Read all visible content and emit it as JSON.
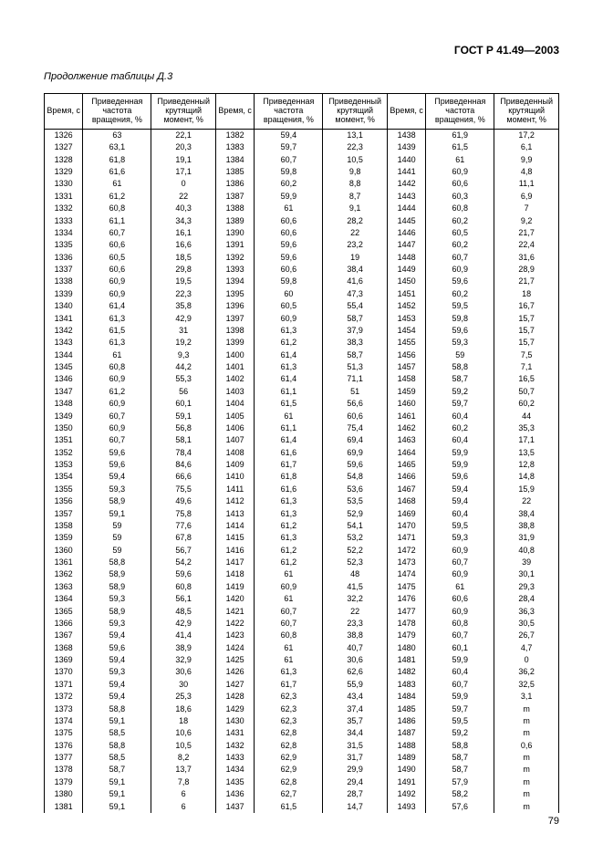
{
  "header": "ГОСТ Р 41.49—2003",
  "caption_prefix": "Продолжение таблицы",
  "caption_suffix": "Д.3",
  "page_number": "79",
  "col_headers": {
    "time": "Время, с",
    "freq": "Приведенная частота вращения, %",
    "torque": "Приведенный крутящий момент, %"
  },
  "blocks": [
    [
      [
        "1326",
        "63",
        "22,1"
      ],
      [
        "1327",
        "63,1",
        "20,3"
      ],
      [
        "1328",
        "61,8",
        "19,1"
      ],
      [
        "1329",
        "61,6",
        "17,1"
      ],
      [
        "1330",
        "61",
        "0"
      ],
      [
        "1331",
        "61,2",
        "22"
      ],
      [
        "1332",
        "60,8",
        "40,3"
      ],
      [
        "1333",
        "61,1",
        "34,3"
      ],
      [
        "1334",
        "60,7",
        "16,1"
      ],
      [
        "1335",
        "60,6",
        "16,6"
      ],
      [
        "1336",
        "60,5",
        "18,5"
      ],
      [
        "1337",
        "60,6",
        "29,8"
      ],
      [
        "1338",
        "60,9",
        "19,5"
      ],
      [
        "1339",
        "60,9",
        "22,3"
      ],
      [
        "1340",
        "61,4",
        "35,8"
      ],
      [
        "1341",
        "61,3",
        "42,9"
      ],
      [
        "1342",
        "61,5",
        "31"
      ],
      [
        "1343",
        "61,3",
        "19,2"
      ],
      [
        "1344",
        "61",
        "9,3"
      ],
      [
        "1345",
        "60,8",
        "44,2"
      ],
      [
        "1346",
        "60,9",
        "55,3"
      ],
      [
        "1347",
        "61,2",
        "56"
      ],
      [
        "1348",
        "60,9",
        "60,1"
      ],
      [
        "1349",
        "60,7",
        "59,1"
      ],
      [
        "1350",
        "60,9",
        "56,8"
      ],
      [
        "1351",
        "60,7",
        "58,1"
      ],
      [
        "1352",
        "59,6",
        "78,4"
      ],
      [
        "1353",
        "59,6",
        "84,6"
      ],
      [
        "1354",
        "59,4",
        "66,6"
      ],
      [
        "1355",
        "59,3",
        "75,5"
      ],
      [
        "1356",
        "58,9",
        "49,6"
      ],
      [
        "1357",
        "59,1",
        "75,8"
      ],
      [
        "1358",
        "59",
        "77,6"
      ],
      [
        "1359",
        "59",
        "67,8"
      ],
      [
        "1360",
        "59",
        "56,7"
      ],
      [
        "1361",
        "58,8",
        "54,2"
      ],
      [
        "1362",
        "58,9",
        "59,6"
      ],
      [
        "1363",
        "58,9",
        "60,8"
      ],
      [
        "1364",
        "59,3",
        "56,1"
      ],
      [
        "1365",
        "58,9",
        "48,5"
      ],
      [
        "1366",
        "59,3",
        "42,9"
      ],
      [
        "1367",
        "59,4",
        "41,4"
      ],
      [
        "1368",
        "59,6",
        "38,9"
      ],
      [
        "1369",
        "59,4",
        "32,9"
      ],
      [
        "1370",
        "59,3",
        "30,6"
      ],
      [
        "1371",
        "59,4",
        "30"
      ],
      [
        "1372",
        "59,4",
        "25,3"
      ],
      [
        "1373",
        "58,8",
        "18,6"
      ],
      [
        "1374",
        "59,1",
        "18"
      ],
      [
        "1375",
        "58,5",
        "10,6"
      ],
      [
        "1376",
        "58,8",
        "10,5"
      ],
      [
        "1377",
        "58,5",
        "8,2"
      ],
      [
        "1378",
        "58,7",
        "13,7"
      ],
      [
        "1379",
        "59,1",
        "7,8"
      ],
      [
        "1380",
        "59,1",
        "6"
      ],
      [
        "1381",
        "59,1",
        "6"
      ]
    ],
    [
      [
        "1382",
        "59,4",
        "13,1"
      ],
      [
        "1383",
        "59,7",
        "22,3"
      ],
      [
        "1384",
        "60,7",
        "10,5"
      ],
      [
        "1385",
        "59,8",
        "9,8"
      ],
      [
        "1386",
        "60,2",
        "8,8"
      ],
      [
        "1387",
        "59,9",
        "8,7"
      ],
      [
        "1388",
        "61",
        "9,1"
      ],
      [
        "1389",
        "60,6",
        "28,2"
      ],
      [
        "1390",
        "60,6",
        "22"
      ],
      [
        "1391",
        "59,6",
        "23,2"
      ],
      [
        "1392",
        "59,6",
        "19"
      ],
      [
        "1393",
        "60,6",
        "38,4"
      ],
      [
        "1394",
        "59,8",
        "41,6"
      ],
      [
        "1395",
        "60",
        "47,3"
      ],
      [
        "1396",
        "60,5",
        "55,4"
      ],
      [
        "1397",
        "60,9",
        "58,7"
      ],
      [
        "1398",
        "61,3",
        "37,9"
      ],
      [
        "1399",
        "61,2",
        "38,3"
      ],
      [
        "1400",
        "61,4",
        "58,7"
      ],
      [
        "1401",
        "61,3",
        "51,3"
      ],
      [
        "1402",
        "61,4",
        "71,1"
      ],
      [
        "1403",
        "61,1",
        "51"
      ],
      [
        "1404",
        "61,5",
        "56,6"
      ],
      [
        "1405",
        "61",
        "60,6"
      ],
      [
        "1406",
        "61,1",
        "75,4"
      ],
      [
        "1407",
        "61,4",
        "69,4"
      ],
      [
        "1408",
        "61,6",
        "69,9"
      ],
      [
        "1409",
        "61,7",
        "59,6"
      ],
      [
        "1410",
        "61,8",
        "54,8"
      ],
      [
        "1411",
        "61,6",
        "53,6"
      ],
      [
        "1412",
        "61,3",
        "53,5"
      ],
      [
        "1413",
        "61,3",
        "52,9"
      ],
      [
        "1414",
        "61,2",
        "54,1"
      ],
      [
        "1415",
        "61,3",
        "53,2"
      ],
      [
        "1416",
        "61,2",
        "52,2"
      ],
      [
        "1417",
        "61,2",
        "52,3"
      ],
      [
        "1418",
        "61",
        "48"
      ],
      [
        "1419",
        "60,9",
        "41,5"
      ],
      [
        "1420",
        "61",
        "32,2"
      ],
      [
        "1421",
        "60,7",
        "22"
      ],
      [
        "1422",
        "60,7",
        "23,3"
      ],
      [
        "1423",
        "60,8",
        "38,8"
      ],
      [
        "1424",
        "61",
        "40,7"
      ],
      [
        "1425",
        "61",
        "30,6"
      ],
      [
        "1426",
        "61,3",
        "62,6"
      ],
      [
        "1427",
        "61,7",
        "55,9"
      ],
      [
        "1428",
        "62,3",
        "43,4"
      ],
      [
        "1429",
        "62,3",
        "37,4"
      ],
      [
        "1430",
        "62,3",
        "35,7"
      ],
      [
        "1431",
        "62,8",
        "34,4"
      ],
      [
        "1432",
        "62,8",
        "31,5"
      ],
      [
        "1433",
        "62,9",
        "31,7"
      ],
      [
        "1434",
        "62,9",
        "29,9"
      ],
      [
        "1435",
        "62,8",
        "29,4"
      ],
      [
        "1436",
        "62,7",
        "28,7"
      ],
      [
        "1437",
        "61,5",
        "14,7"
      ]
    ],
    [
      [
        "1438",
        "61,9",
        "17,2"
      ],
      [
        "1439",
        "61,5",
        "6,1"
      ],
      [
        "1440",
        "61",
        "9,9"
      ],
      [
        "1441",
        "60,9",
        "4,8"
      ],
      [
        "1442",
        "60,6",
        "11,1"
      ],
      [
        "1443",
        "60,3",
        "6,9"
      ],
      [
        "1444",
        "60,8",
        "7"
      ],
      [
        "1445",
        "60,2",
        "9,2"
      ],
      [
        "1446",
        "60,5",
        "21,7"
      ],
      [
        "1447",
        "60,2",
        "22,4"
      ],
      [
        "1448",
        "60,7",
        "31,6"
      ],
      [
        "1449",
        "60,9",
        "28,9"
      ],
      [
        "1450",
        "59,6",
        "21,7"
      ],
      [
        "1451",
        "60,2",
        "18"
      ],
      [
        "1452",
        "59,5",
        "16,7"
      ],
      [
        "1453",
        "59,8",
        "15,7"
      ],
      [
        "1454",
        "59,6",
        "15,7"
      ],
      [
        "1455",
        "59,3",
        "15,7"
      ],
      [
        "1456",
        "59",
        "7,5"
      ],
      [
        "1457",
        "58,8",
        "7,1"
      ],
      [
        "1458",
        "58,7",
        "16,5"
      ],
      [
        "1459",
        "59,2",
        "50,7"
      ],
      [
        "1460",
        "59,7",
        "60,2"
      ],
      [
        "1461",
        "60,4",
        "44"
      ],
      [
        "1462",
        "60,2",
        "35,3"
      ],
      [
        "1463",
        "60,4",
        "17,1"
      ],
      [
        "1464",
        "59,9",
        "13,5"
      ],
      [
        "1465",
        "59,9",
        "12,8"
      ],
      [
        "1466",
        "59,6",
        "14,8"
      ],
      [
        "1467",
        "59,4",
        "15,9"
      ],
      [
        "1468",
        "59,4",
        "22"
      ],
      [
        "1469",
        "60,4",
        "38,4"
      ],
      [
        "1470",
        "59,5",
        "38,8"
      ],
      [
        "1471",
        "59,3",
        "31,9"
      ],
      [
        "1472",
        "60,9",
        "40,8"
      ],
      [
        "1473",
        "60,7",
        "39"
      ],
      [
        "1474",
        "60,9",
        "30,1"
      ],
      [
        "1475",
        "61",
        "29,3"
      ],
      [
        "1476",
        "60,6",
        "28,4"
      ],
      [
        "1477",
        "60,9",
        "36,3"
      ],
      [
        "1478",
        "60,8",
        "30,5"
      ],
      [
        "1479",
        "60,7",
        "26,7"
      ],
      [
        "1480",
        "60,1",
        "4,7"
      ],
      [
        "1481",
        "59,9",
        "0"
      ],
      [
        "1482",
        "60,4",
        "36,2"
      ],
      [
        "1483",
        "60,7",
        "32,5"
      ],
      [
        "1484",
        "59,9",
        "3,1"
      ],
      [
        "1485",
        "59,7",
        "m"
      ],
      [
        "1486",
        "59,5",
        "m"
      ],
      [
        "1487",
        "59,2",
        "m"
      ],
      [
        "1488",
        "58,8",
        "0,6"
      ],
      [
        "1489",
        "58,7",
        "m"
      ],
      [
        "1490",
        "58,7",
        "m"
      ],
      [
        "1491",
        "57,9",
        "m"
      ],
      [
        "1492",
        "58,2",
        "m"
      ],
      [
        "1493",
        "57,6",
        "m"
      ]
    ]
  ]
}
